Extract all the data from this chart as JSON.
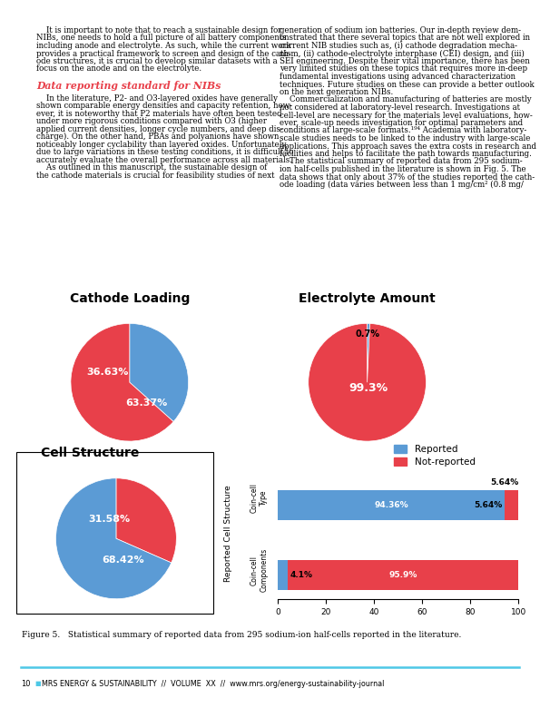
{
  "page_width": 5.95,
  "page_height": 7.91,
  "bg_color": "#ffffff",
  "blue_color": "#5b9bd5",
  "red_color": "#e8404a",
  "text_color": "#000000",
  "heading_color": "#e8404a",
  "cathode_loading_title": "Cathode Loading",
  "cathode_loading_values": [
    36.63,
    63.37
  ],
  "cathode_loading_labels": [
    "36.63%",
    "63.37%"
  ],
  "electrolyte_title": "Electrolyte Amount",
  "electrolyte_values": [
    0.7,
    99.3
  ],
  "electrolyte_labels": [
    "0.7%",
    "99.3%"
  ],
  "cell_structure_title": "Cell Structure",
  "cell_structure_values": [
    31.58,
    68.42
  ],
  "cell_structure_labels": [
    "31.58%",
    "68.42%"
  ],
  "bar_categories": [
    "Coin-cell\nType",
    "Coin-cell\nComponents"
  ],
  "bar_reported": [
    94.36,
    4.1
  ],
  "bar_not_reported": [
    5.64,
    95.9
  ],
  "bar_reported_labels": [
    "94.36%",
    "4.1%"
  ],
  "bar_not_reported_labels": [
    "5.64%",
    "95.9%"
  ],
  "legend_reported": "Reported",
  "legend_not_reported": "Not-reported",
  "figure_caption": "Figure 5.   Statistical summary of reported data from 295 sodium-ion half-cells reported in the literature.",
  "footer_line_color": "#4ec8e6",
  "left_col_lines": [
    "    It is important to note that to reach a sustainable design for",
    "NIBs, one needs to hold a full picture of all battery components",
    "including anode and electrolyte. As such, while the current work",
    "provides a practical framework to screen and design of the cath-",
    "ode structures, it is crucial to develop similar datasets with a",
    "focus on the anode and on the electrolyte.",
    "",
    "Data reporting standard for NIBs",
    "",
    "    In the literature, P2- and O3-layered oxides have generally",
    "shown comparable energy densities and capacity retention, how-",
    "ever, it is noteworthy that P2 materials have often been tested",
    "under more rigorous conditions compared with O3 (higher",
    "applied current densities, longer cycle numbers, and deep dis-",
    "charge). On the other hand, PBAs and polyanions have shown",
    "noticeably longer cyclability than layered oxides. Unfortunately,",
    "due to large variations in these testing conditions, it is difficult to",
    "accurately evaluate the overall performance across all materials.",
    "    As outlined in this manuscript, the sustainable design of",
    "the cathode materials is crucial for feasibility studies of next"
  ],
  "right_col_lines": [
    "generation of sodium ion batteries. Our in-depth review dem-",
    "onstrated that there several topics that are not well explored in",
    "current NIB studies such as, (i) cathode degradation mecha-",
    "nism, (ii) cathode-electrolyte interphase (CEI) design, and (iii)",
    "SEI engineering. Despite their vital importance, there has been",
    "very limited studies on these topics that requires more in-deep",
    "fundamental investigations using advanced characterization",
    "techniques. Future studies on these can provide a better outlook",
    "on the next generation NIBs.",
    "    Commercialization and manufacturing of batteries are mostly",
    "not considered at laboratory-level research. Investigations at",
    "cell-level are necessary for the materials level evaluations, how-",
    "ever, scale-up needs investigation for optimal parameters and",
    "conditions at large-scale formats.¹⁹⁴ Academia with laboratory-",
    "scale studies needs to be linked to the industry with large-scale",
    "applications. This approach saves the extra costs in research and",
    "facilities and helps to facilitate the path towards manufacturing.",
    "    The statistical summary of reported data from 295 sodium-",
    "ion half-cells published in the literature is shown in Fig. 5. The",
    "data shows that only about 37% of the studies reported the cath-",
    "ode loading (data varies between less than 1 mg/cm² (0.8 mg/"
  ],
  "heading_line_idx": 7
}
